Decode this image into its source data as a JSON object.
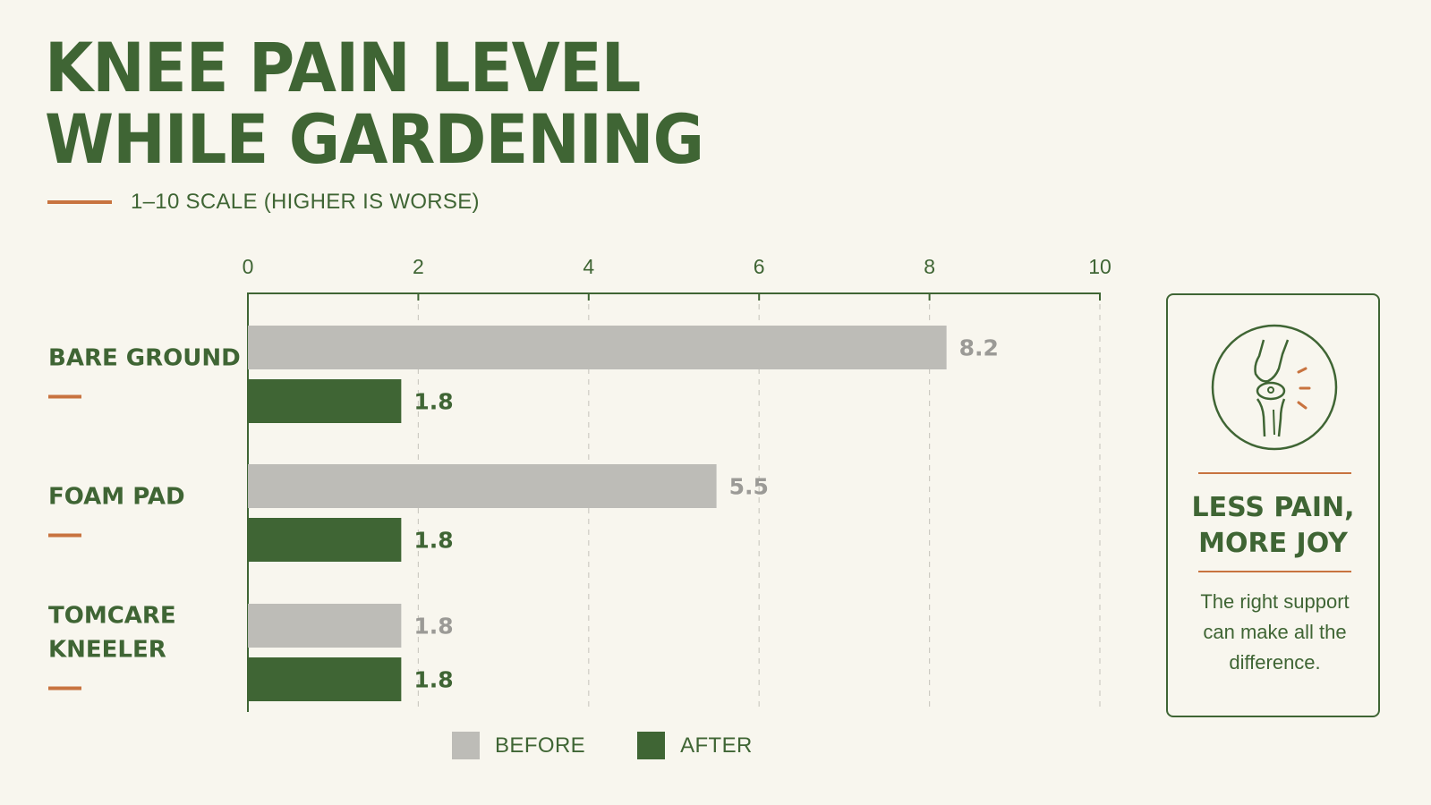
{
  "colors": {
    "green": "#3f6534",
    "gray": "#bdbcb7",
    "gray_text": "#9b9a96",
    "accent": "#c8733f",
    "background": "#f8f6ee"
  },
  "title_lines": [
    "KNEE PAIN LEVEL",
    "WHILE GARDENING"
  ],
  "subtitle": "1–10 SCALE (HIGHER IS WORSE)",
  "chart_data": {
    "type": "bar",
    "orientation": "horizontal",
    "title": "KNEE PAIN LEVEL WHILE GARDENING",
    "subtitle": "1–10 SCALE (HIGHER IS WORSE)",
    "categories": [
      [
        "BARE GROUND"
      ],
      [
        "FOAM PAD"
      ],
      [
        "TOMCARE",
        "KNEELER"
      ]
    ],
    "series": [
      {
        "name": "BEFORE",
        "color": "#bdbcb7",
        "values": [
          8.2,
          5.5,
          1.8
        ]
      },
      {
        "name": "AFTER",
        "color": "#3f6534",
        "values": [
          1.8,
          1.8,
          1.8
        ]
      }
    ],
    "xlim": [
      0,
      10
    ],
    "ticks": [
      0,
      2,
      4,
      6,
      8,
      10
    ],
    "axis_position": "top",
    "grid": "dashed vertical",
    "legend_position": "bottom"
  },
  "legend": {
    "before_label": "BEFORE",
    "after_label": "AFTER"
  },
  "sidebar": {
    "icon": "knee-joint-icon",
    "heading_line1": "LESS PAIN,",
    "heading_line2": "MORE JOY",
    "text_line1": "The right support",
    "text_line2": "can make all the",
    "text_line3": "difference."
  }
}
